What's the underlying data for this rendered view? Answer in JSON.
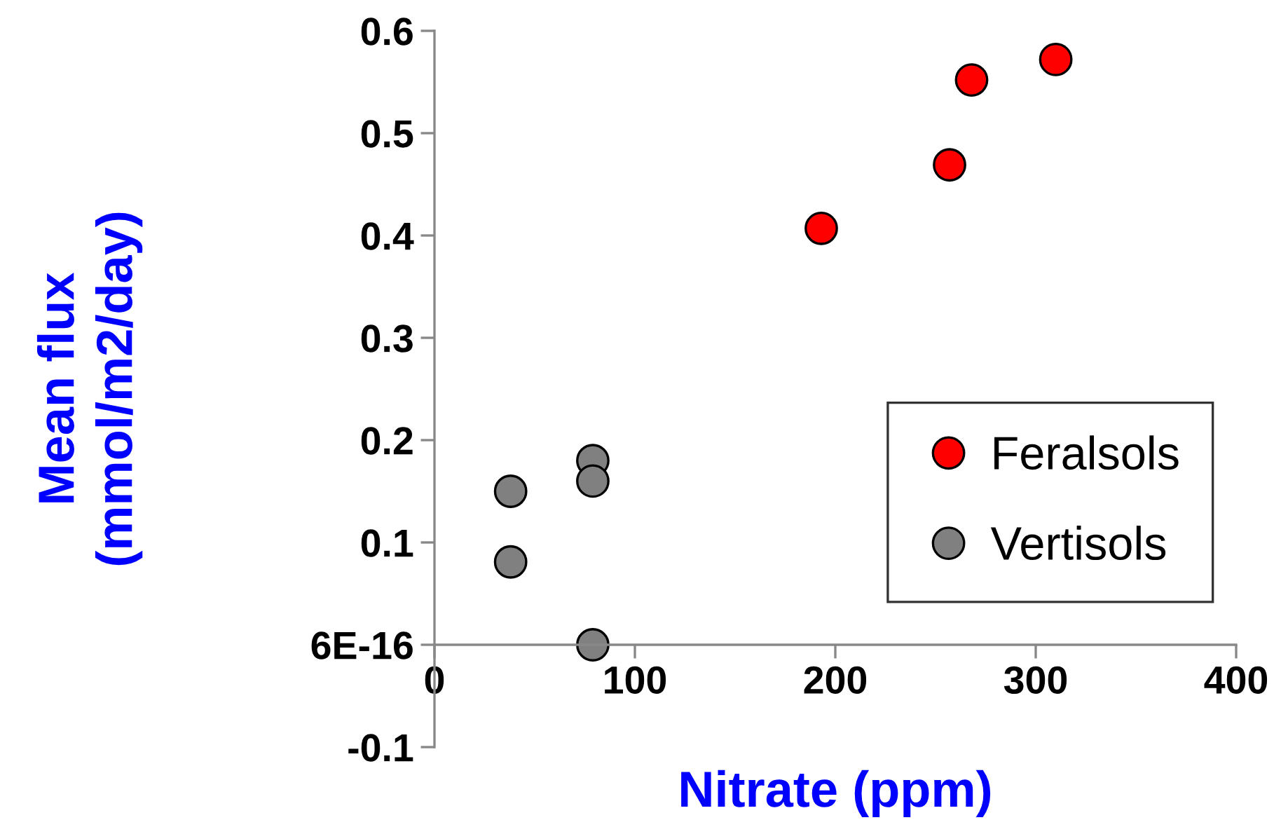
{
  "chart_data": {
    "type": "scatter",
    "xlabel": "Nitrate (ppm)",
    "ylabel": "Mean flux\n(mmol/m2/day)",
    "series": [
      {
        "name": "Feralsols",
        "color": "#ff0000",
        "x": [
          193,
          257,
          268,
          310
        ],
        "values": [
          0.407,
          0.469,
          0.552,
          0.572
        ]
      },
      {
        "name": "Vertisols",
        "color": "#808080",
        "x": [
          38,
          38,
          79,
          79,
          79
        ],
        "values": [
          0.15,
          0.081,
          0.18,
          0.16,
          0.0
        ]
      }
    ],
    "xlim": [
      0,
      400
    ],
    "xticks": [
      0,
      100,
      200,
      300,
      400
    ],
    "ylim": [
      -0.1,
      0.6
    ],
    "yticks": [
      {
        "value": -0.1,
        "label": "-0.1"
      },
      {
        "value": 0,
        "label": "6E-16"
      },
      0.1,
      0.2,
      0.3,
      0.4,
      0.5,
      0.6
    ],
    "grid": false,
    "legend": "lower right",
    "marker": "circle"
  }
}
